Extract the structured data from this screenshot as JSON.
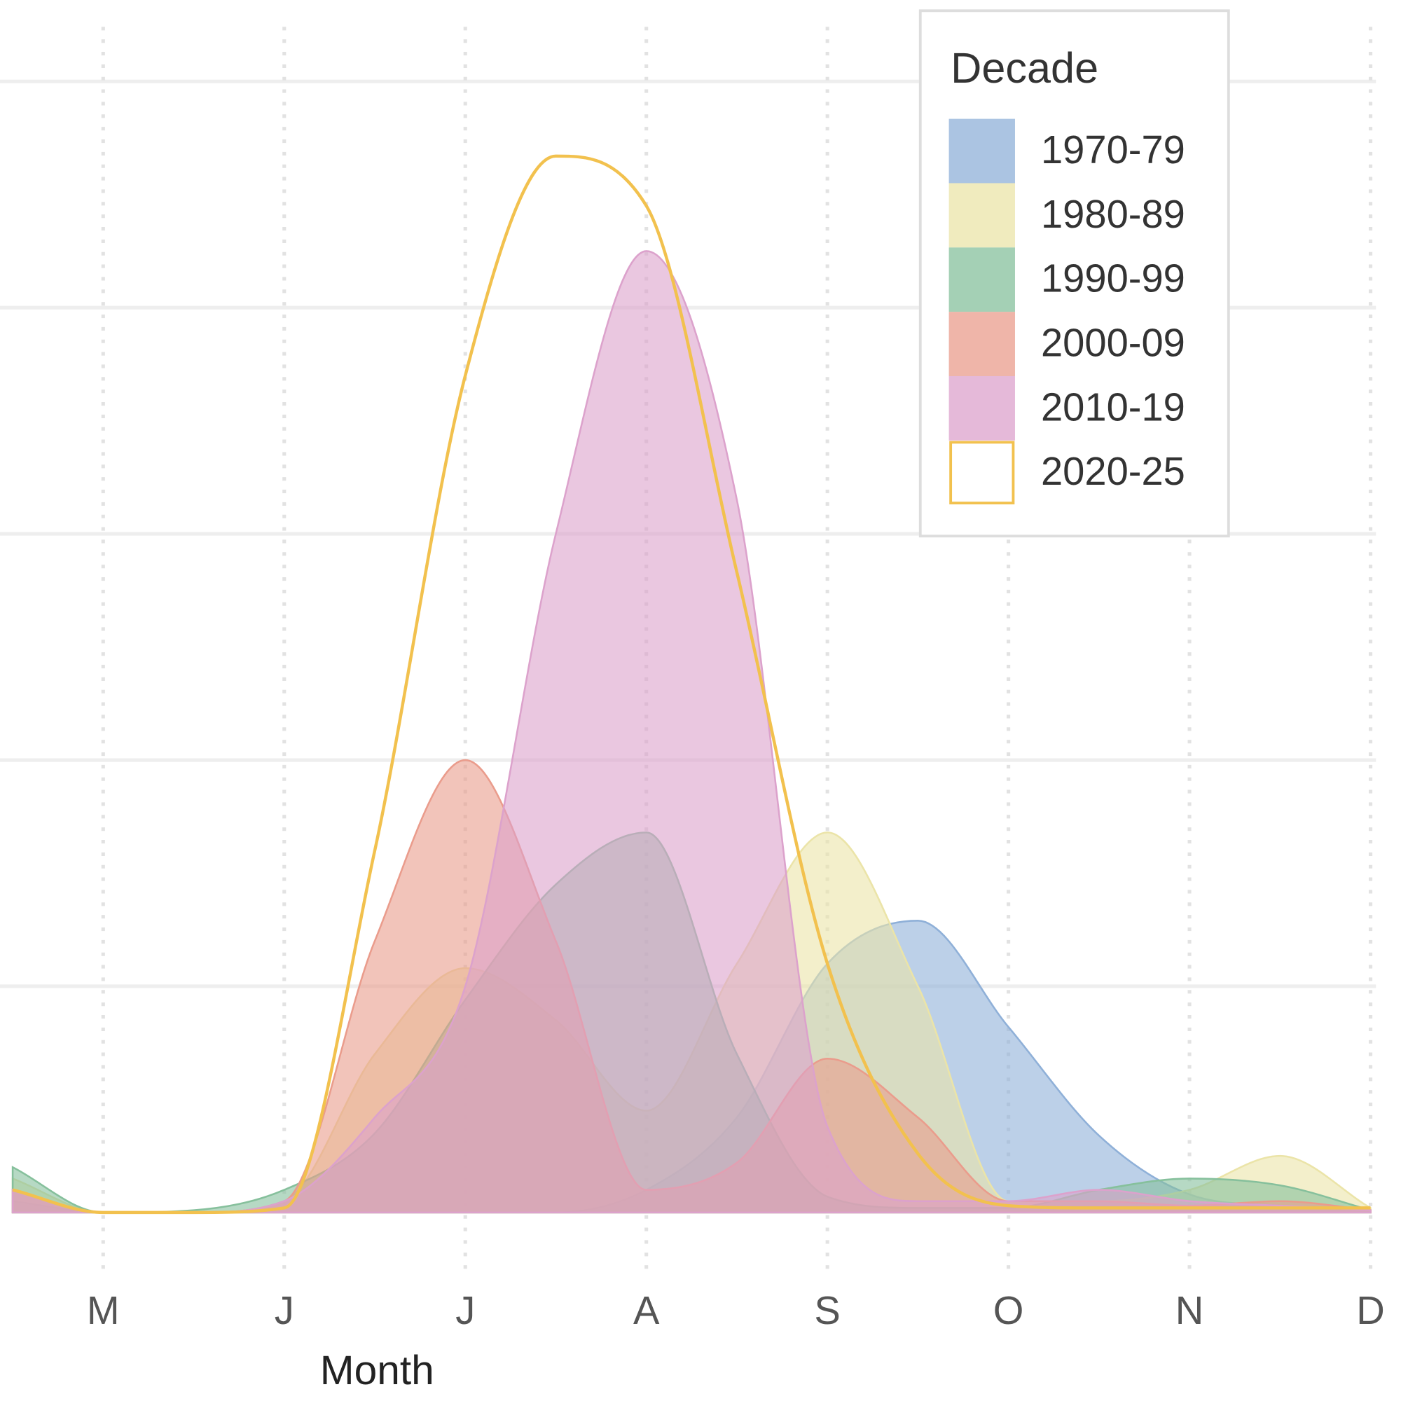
{
  "chart_data": {
    "type": "area",
    "x_label": "Month",
    "x": [
      4.5,
      5,
      5.5,
      6,
      6.5,
      7,
      7.5,
      8,
      8.5,
      9,
      9.5,
      10,
      10.5,
      11,
      11.5,
      12
    ],
    "xlim": [
      4.43,
      12.03
    ],
    "xticks": [
      {
        "value": 5,
        "label": "M"
      },
      {
        "value": 6,
        "label": "J"
      },
      {
        "value": 7,
        "label": "J"
      },
      {
        "value": 8,
        "label": "A"
      },
      {
        "value": 9,
        "label": "S"
      },
      {
        "value": 10,
        "label": "O"
      },
      {
        "value": 11,
        "label": "N"
      },
      {
        "value": 12,
        "label": "D"
      }
    ],
    "ylim": [
      0,
      5.36
    ],
    "yticks": [
      1,
      2,
      3,
      4,
      5
    ],
    "grid": true,
    "legend": {
      "title": "Decade",
      "position": "top-right"
    },
    "series": [
      {
        "name": "1970-79",
        "color": "#8fb0d8",
        "values": [
          0.05,
          0,
          0,
          0,
          0,
          0,
          0,
          0.1,
          0.42,
          1.1,
          1.29,
          0.82,
          0.34,
          0.08,
          0.03,
          0.01
        ]
      },
      {
        "name": "1980-89",
        "color": "#ebe4a8",
        "values": [
          0.15,
          0,
          0,
          0.05,
          0.7,
          1.08,
          0.85,
          0.45,
          1.1,
          1.68,
          1.0,
          0.05,
          0.05,
          0.1,
          0.25,
          0.02
        ]
      },
      {
        "name": "1990-99",
        "color": "#86c09c",
        "values": [
          0.2,
          0,
          0.01,
          0.1,
          0.35,
          0.94,
          1.45,
          1.68,
          0.7,
          0.07,
          0.02,
          0.02,
          0.1,
          0.15,
          0.12,
          0.01
        ]
      },
      {
        "name": "2000-09",
        "color": "#ea9c8c",
        "values": [
          0.1,
          0,
          0,
          0.05,
          1.2,
          2.0,
          1.2,
          0.1,
          0.22,
          0.68,
          0.42,
          0.05,
          0.05,
          0.03,
          0.05,
          0.01
        ]
      },
      {
        "name": "2010-19",
        "color": "#dca2cc",
        "values": [
          0.1,
          0,
          0,
          0.05,
          0.42,
          1.0,
          3.0,
          4.25,
          3.15,
          0.38,
          0.05,
          0.05,
          0.1,
          0.05,
          0.03,
          0.01
        ]
      },
      {
        "name": "2020-25",
        "color": "#f2c14e",
        "outline_only": true,
        "values": [
          0.1,
          0,
          0,
          0.02,
          1.6,
          3.7,
          4.67,
          4.45,
          2.83,
          1.1,
          0.26,
          0.03,
          0.02,
          0.02,
          0.02,
          0.02
        ]
      }
    ]
  }
}
